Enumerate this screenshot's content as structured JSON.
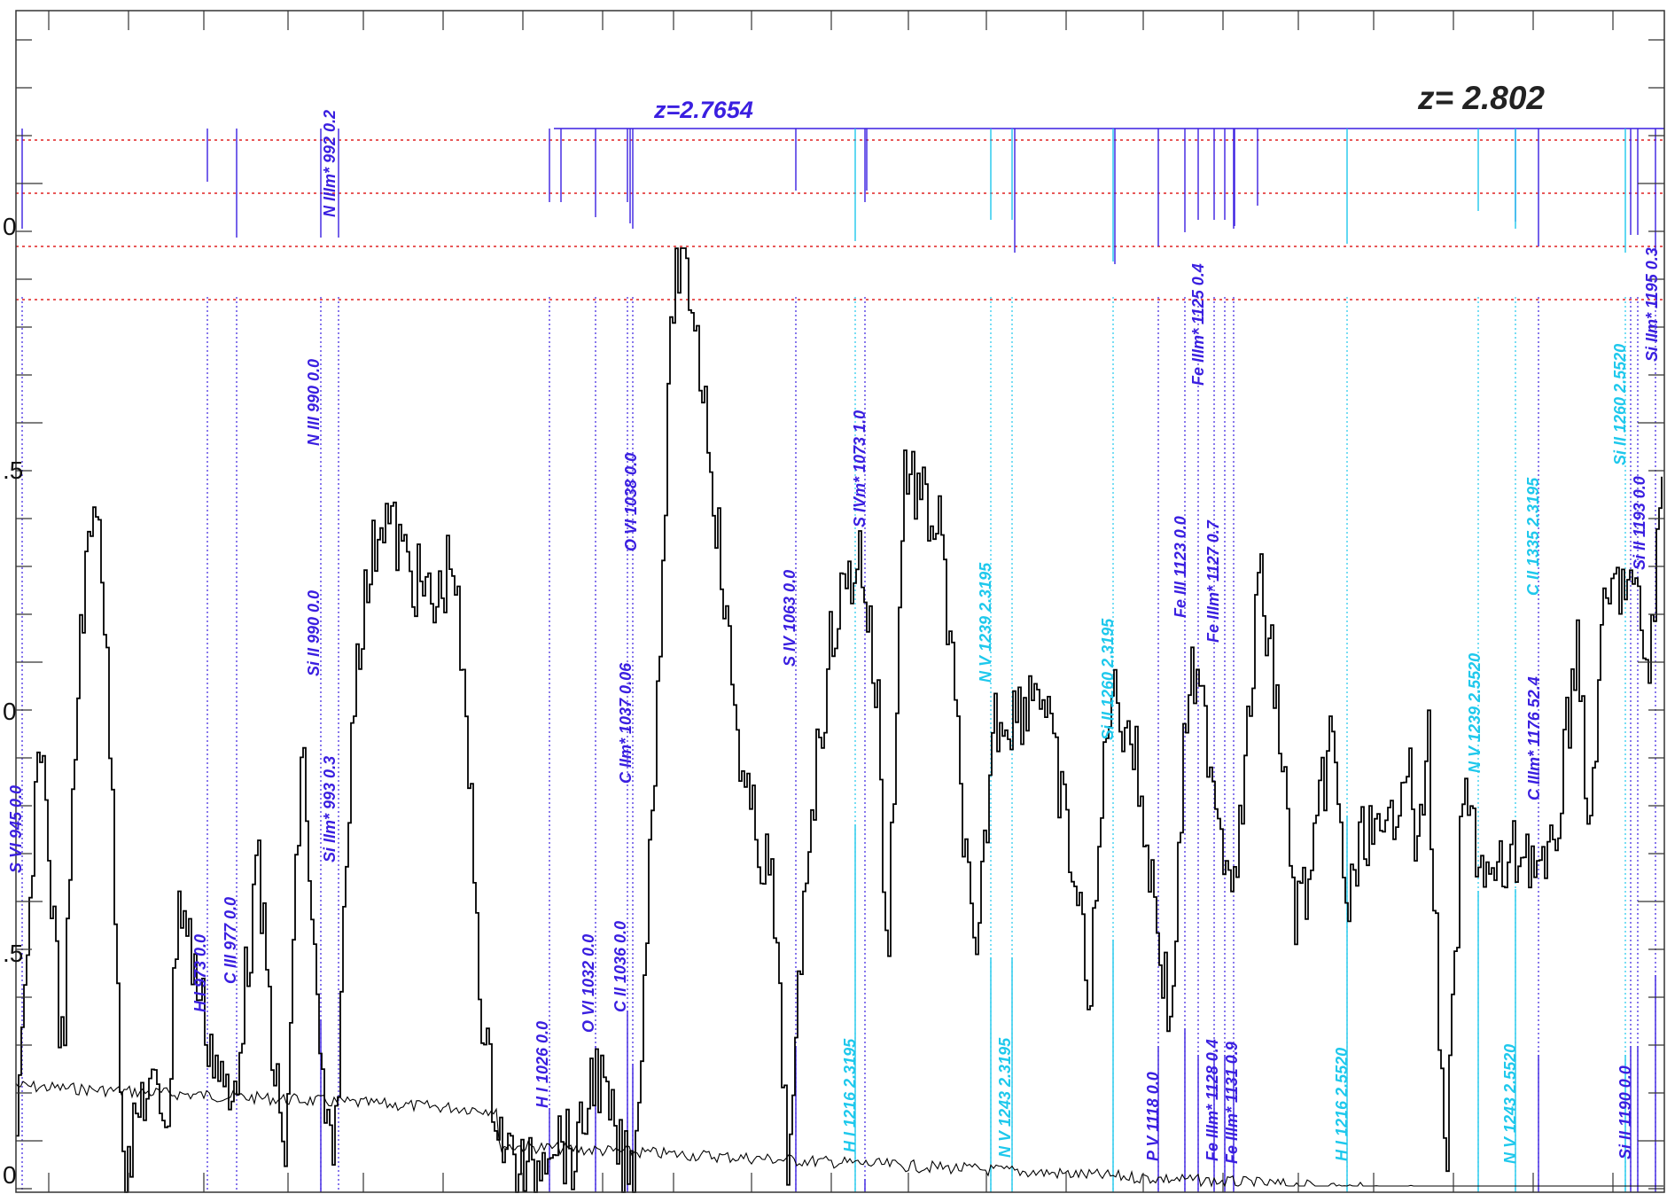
{
  "chart_data": {
    "type": "line",
    "title": "",
    "xlabel": "",
    "ylabel": "",
    "grid": false,
    "colors": {
      "flux": "#000000",
      "error": "#000000",
      "system_a": "#3a1fe0",
      "system_b": "#1ec8ec",
      "reference_lines": "#e02020"
    },
    "redshift_labels": [
      {
        "id": "z-label-system-a",
        "text": "z=2.7654",
        "color": "#3a1fe0"
      },
      {
        "id": "z-label-main",
        "text": "z=  2.802",
        "color": "#222222"
      }
    ],
    "y_tick_labels": [
      "0",
      ".5",
      "0",
      ".5",
      "0"
    ],
    "line_ids": [
      {
        "text": "S VI 945 0.0",
        "sys": "a"
      },
      {
        "text": "H I 973 0.0",
        "sys": "a"
      },
      {
        "text": "C III 977 0.0",
        "sys": "a"
      },
      {
        "text": "N IIIm* 992 0.2",
        "sys": "a"
      },
      {
        "text": "N III 990 0.0",
        "sys": "a"
      },
      {
        "text": "Si II 990 0.0",
        "sys": "a"
      },
      {
        "text": "Si IIm* 993 0.3",
        "sys": "a"
      },
      {
        "text": "H I 1026 0.0",
        "sys": "a"
      },
      {
        "text": "O VI 1032 0.0",
        "sys": "a"
      },
      {
        "text": "C II 1036 0.0",
        "sys": "a"
      },
      {
        "text": "C IIm* 1037 0.06",
        "sys": "a"
      },
      {
        "text": "O VI 1038 0.0",
        "sys": "a"
      },
      {
        "text": "S IV 1063 0.0",
        "sys": "a"
      },
      {
        "text": "S IVm* 1073 1.0",
        "sys": "a"
      },
      {
        "text": "H I 1216 2.3195",
        "sys": "b"
      },
      {
        "text": "N V 1239 2.3195",
        "sys": "b"
      },
      {
        "text": "N V 1243 2.3195",
        "sys": "b"
      },
      {
        "text": "Si II 1260 2.3195",
        "sys": "b"
      },
      {
        "text": "P V 1118 0.0",
        "sys": "a"
      },
      {
        "text": "Fe III 1123 0.0",
        "sys": "a"
      },
      {
        "text": "Fe IIIm* 1125 0.4",
        "sys": "a"
      },
      {
        "text": "Fe IIIm* 1127 0.7",
        "sys": "a"
      },
      {
        "text": "Fe IIIm* 1128 0.4",
        "sys": "a"
      },
      {
        "text": "Fe IIIm* 1131 0.9",
        "sys": "a"
      },
      {
        "text": "H I 1216 2.5520",
        "sys": "b"
      },
      {
        "text": "N V 1239 2.5520",
        "sys": "b"
      },
      {
        "text": "N V 1243 2.5520",
        "sys": "b"
      },
      {
        "text": "C IIIm* 1176 52.4",
        "sys": "a"
      },
      {
        "text": "C II 1335 2.3195",
        "sys": "b"
      },
      {
        "text": "Si II 1190 0.0",
        "sys": "a"
      },
      {
        "text": "Si II 1193 0.0",
        "sys": "a"
      },
      {
        "text": "Si II 1260 2.5520",
        "sys": "b"
      },
      {
        "text": "Si IIm* 1195 0.3",
        "sys": "a"
      }
    ]
  }
}
